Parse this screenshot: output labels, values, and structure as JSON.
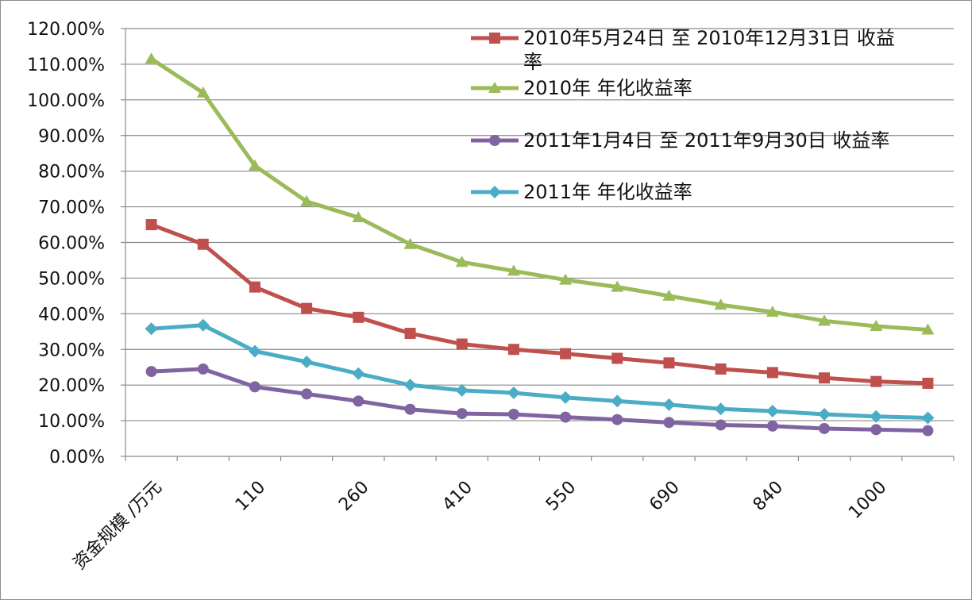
{
  "chart_data": {
    "type": "line",
    "xlabel": "",
    "ylabel": "",
    "title": "",
    "ylim": [
      0,
      1.2
    ],
    "y_tick_labels": [
      "0.00%",
      "10.00%",
      "20.00%",
      "30.00%",
      "40.00%",
      "50.00%",
      "60.00%",
      "70.00%",
      "80.00%",
      "90.00%",
      "100.00%",
      "110.00%",
      "120.00%"
    ],
    "categories": [
      "资金规模 /万元",
      "",
      "110",
      "",
      "260",
      "",
      "410",
      "",
      "550",
      "",
      "690",
      "",
      "840",
      "",
      "1000",
      ""
    ],
    "grid": true,
    "legend_position": "top-right",
    "series": [
      {
        "name": "2010年5月24日 至 2010年12月31日 收益率",
        "color": "#c0504d",
        "marker": "square",
        "values": [
          0.65,
          0.595,
          0.475,
          0.415,
          0.39,
          0.345,
          0.315,
          0.3,
          0.288,
          0.275,
          0.262,
          0.245,
          0.235,
          0.22,
          0.21,
          0.205
        ]
      },
      {
        "name": "2010年  年化收益率",
        "color": "#9bbb59",
        "marker": "triangle",
        "values": [
          1.115,
          1.02,
          0.815,
          0.715,
          0.67,
          0.595,
          0.545,
          0.52,
          0.495,
          0.475,
          0.45,
          0.425,
          0.405,
          0.38,
          0.365,
          0.355
        ]
      },
      {
        "name": "2011年1月4日 至 2011年9月30日 收益率",
        "color": "#8064a2",
        "marker": "circle",
        "values": [
          0.238,
          0.245,
          0.195,
          0.175,
          0.155,
          0.132,
          0.12,
          0.118,
          0.11,
          0.103,
          0.095,
          0.088,
          0.085,
          0.078,
          0.075,
          0.072
        ]
      },
      {
        "name": "2011年 年化收益率",
        "color": "#4bacc6",
        "marker": "diamond",
        "values": [
          0.358,
          0.368,
          0.295,
          0.265,
          0.232,
          0.2,
          0.185,
          0.178,
          0.165,
          0.155,
          0.145,
          0.133,
          0.127,
          0.118,
          0.112,
          0.108
        ]
      }
    ]
  }
}
